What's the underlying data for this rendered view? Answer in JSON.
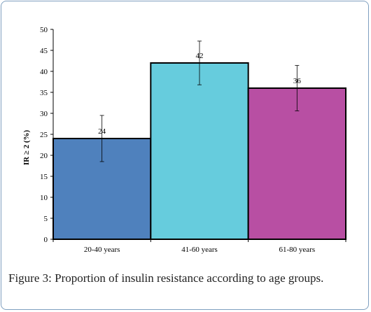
{
  "colors": {
    "frame_border": "#7f9fbf",
    "axis": "#000000",
    "bar_outline": "#000000"
  },
  "chart_data": {
    "type": "bar",
    "categories": [
      "20-40 years",
      "41-60 years",
      "61-80 years"
    ],
    "values": [
      24,
      42,
      36
    ],
    "error_bars": [
      {
        "low": 18.5,
        "high": 29.5
      },
      {
        "low": 36.8,
        "high": 47.2
      },
      {
        "low": 30.6,
        "high": 41.4
      }
    ],
    "bar_colors": [
      "#4f81bd",
      "#66ccdd",
      "#b84fa3"
    ],
    "data_labels": [
      "24",
      "42",
      "36"
    ],
    "xlabel": "",
    "ylabel": "IR ≥ 2 (%)",
    "ylim": [
      0,
      50
    ],
    "yticks": [
      "0",
      "5",
      "10",
      "15",
      "20",
      "25",
      "30",
      "35",
      "40",
      "45",
      "50"
    ],
    "grid": false,
    "legend": "none"
  },
  "caption": {
    "label": "Figure 3:",
    "text": " Proportion of insulin resistance according to age groups."
  }
}
